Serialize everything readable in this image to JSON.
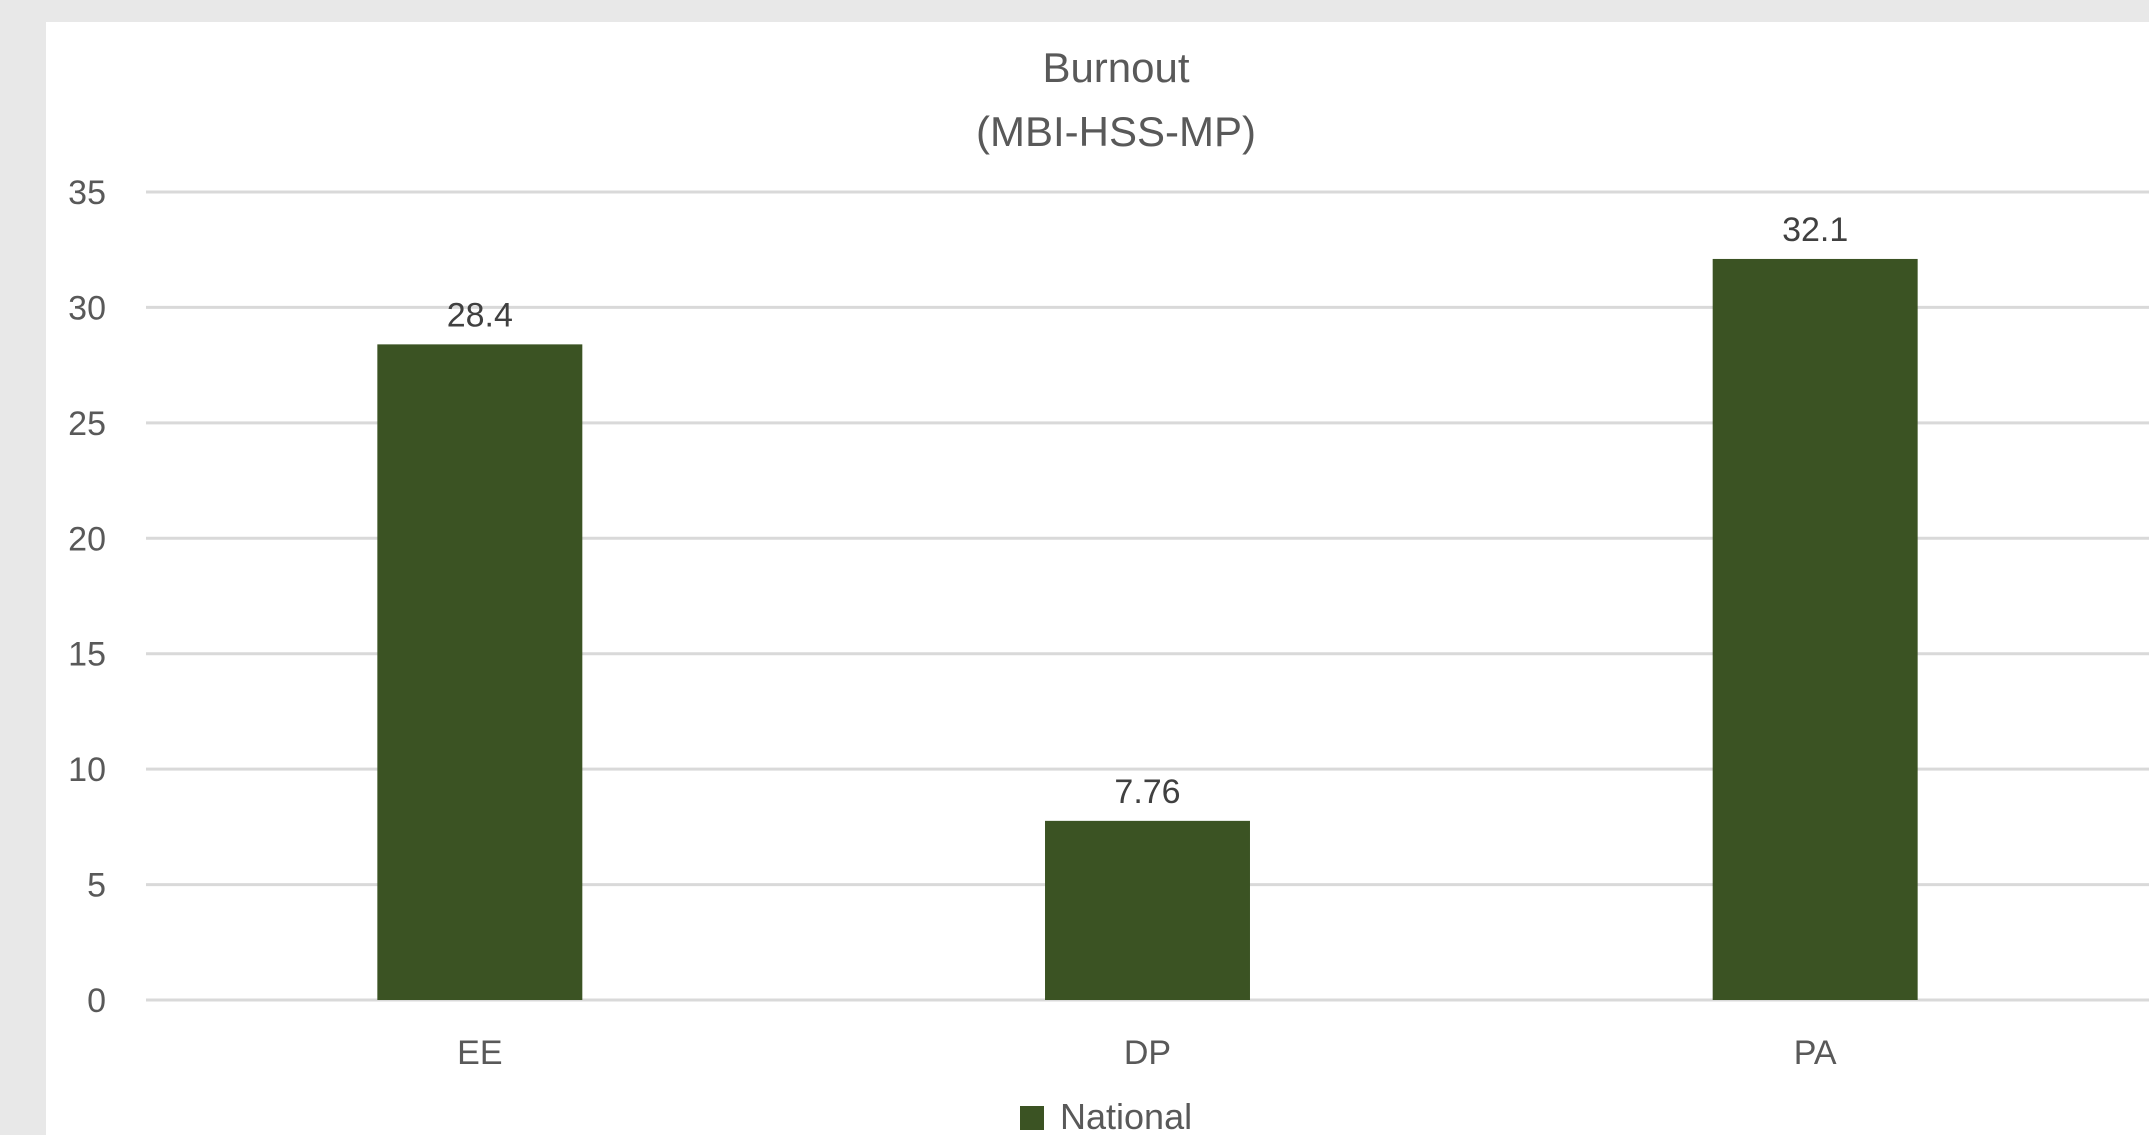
{
  "chart_data": {
    "type": "bar",
    "title": "Burnout",
    "subtitle": "(MBI-HSS-MP)",
    "categories": [
      "EE",
      "DP",
      "PA"
    ],
    "series": [
      {
        "name": "National",
        "values": [
          28.4,
          7.76,
          32.1
        ],
        "color": "#3b5323"
      }
    ],
    "data_labels": [
      "28.4",
      "7.76",
      "32.1"
    ],
    "ylim": [
      0,
      35
    ],
    "yticks": [
      0,
      5,
      10,
      15,
      20,
      25,
      30,
      35
    ],
    "grid": true,
    "legend": "bottom"
  }
}
